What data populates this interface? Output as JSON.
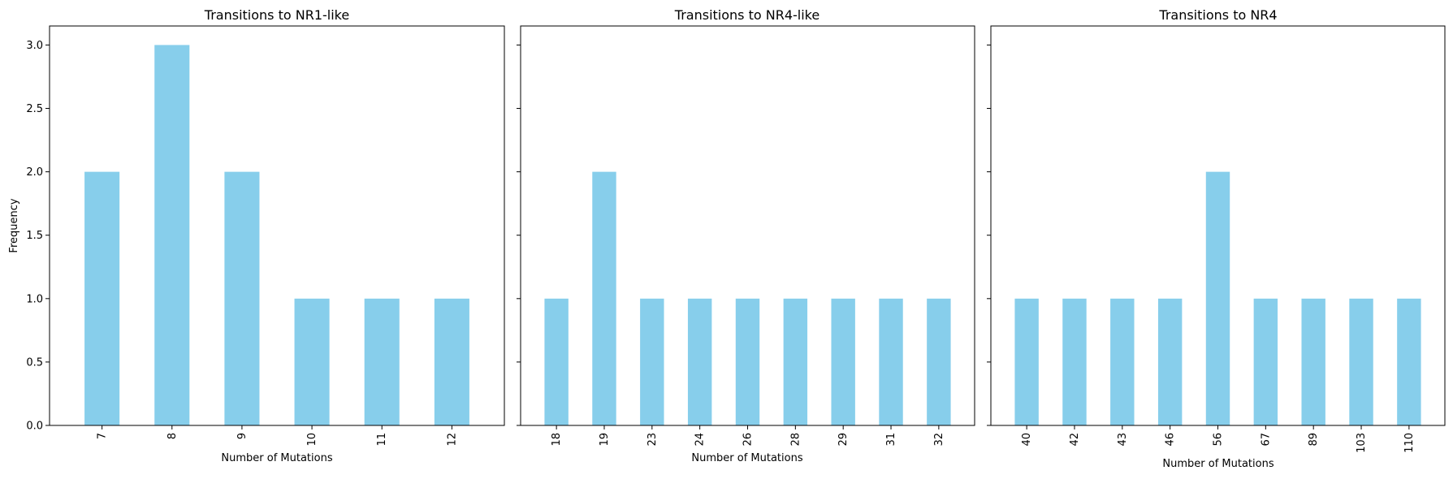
{
  "chart_data": [
    {
      "type": "bar",
      "title": "Transitions to NR1-like",
      "categories": [
        "7",
        "8",
        "9",
        "10",
        "11",
        "12"
      ],
      "values": [
        2,
        3,
        2,
        1,
        1,
        1
      ],
      "xlabel": "Number of Mutations",
      "ylabel": "Frequency",
      "ylim": [
        0,
        3.15
      ],
      "yticks": [
        "0.0",
        "0.5",
        "1.0",
        "1.5",
        "2.0",
        "2.5",
        "3.0"
      ],
      "grid": false,
      "color": "#87CEEB"
    },
    {
      "type": "bar",
      "title": "Transitions to NR4-like",
      "categories": [
        "18",
        "19",
        "23",
        "24",
        "26",
        "28",
        "29",
        "31",
        "32"
      ],
      "values": [
        1,
        2,
        1,
        1,
        1,
        1,
        1,
        1,
        1
      ],
      "xlabel": "Number of Mutations",
      "ylabel": "",
      "ylim": [
        0,
        3.15
      ],
      "grid": false,
      "color": "#87CEEB"
    },
    {
      "type": "bar",
      "title": "Transitions to NR4",
      "categories": [
        "40",
        "42",
        "43",
        "46",
        "56",
        "67",
        "89",
        "103",
        "110"
      ],
      "values": [
        1,
        1,
        1,
        1,
        2,
        1,
        1,
        1,
        1
      ],
      "xlabel": "Number of Mutations",
      "ylabel": "",
      "ylim": [
        0,
        3.15
      ],
      "grid": false,
      "color": "#87CEEB"
    }
  ]
}
